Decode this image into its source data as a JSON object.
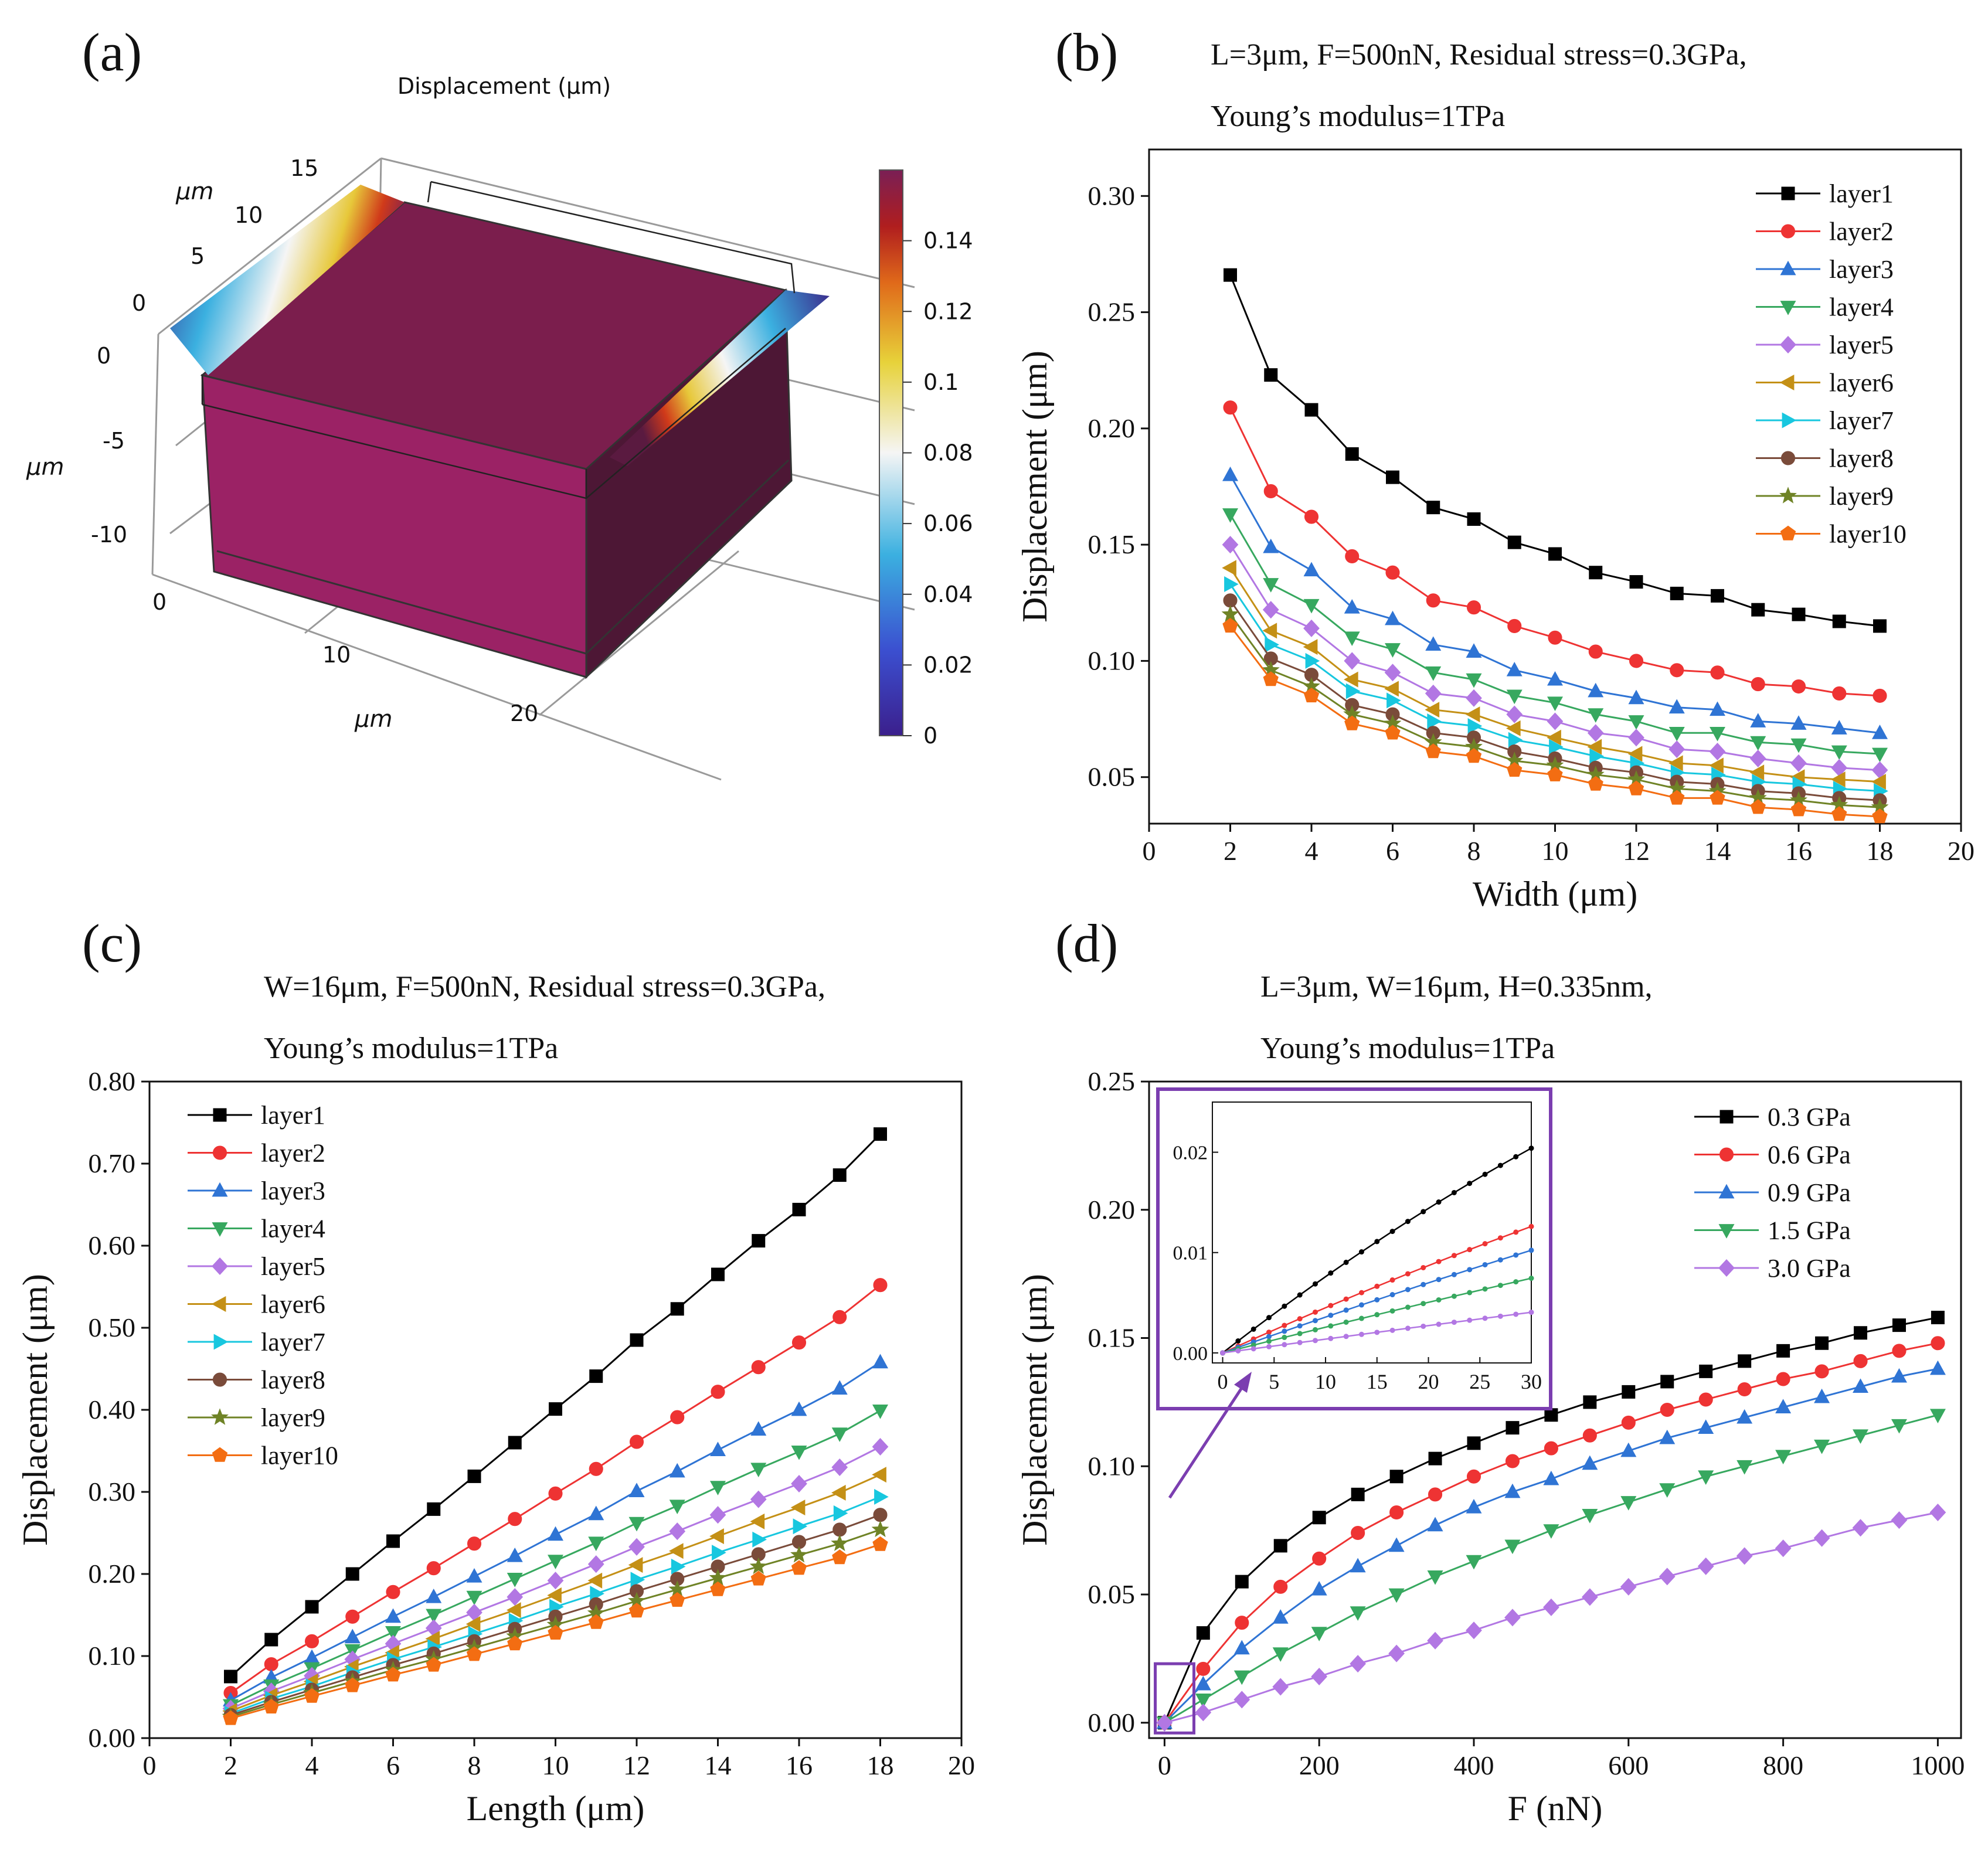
{
  "panels": {
    "a": {
      "label": "(a)"
    },
    "b": {
      "label": "(b)"
    },
    "c": {
      "label": "(c)"
    },
    "d": {
      "label": "(d)"
    }
  },
  "colors": {
    "layer1": "#000000",
    "layer2": "#ee3333",
    "layer3": "#2f74d4",
    "layer4": "#37a85f",
    "layer5": "#b277e3",
    "layer6": "#c49016",
    "layer7": "#18c7df",
    "layer8": "#7a4b3a",
    "layer9": "#6f8326",
    "layer10": "#f36d12",
    "membrane": "#8b1f58",
    "frame": "#777777",
    "inset_border": "#7b3eb0"
  },
  "markers": {
    "layer1": "square",
    "layer2": "circle",
    "layer3": "triangle-up",
    "layer4": "triangle-down",
    "layer5": "diamond",
    "layer6": "triangle-left",
    "layer7": "triangle-right",
    "layer8": "circle",
    "layer9": "star",
    "layer10": "pentagon"
  },
  "chart_data": [
    {
      "id": "a",
      "type": "heatmap",
      "title": "Displacement (µm)",
      "axis_unit": "µm",
      "x_ticks": [
        "0",
        "10",
        "20"
      ],
      "y_ticks": [
        "0",
        "5",
        "10",
        "15"
      ],
      "z_ticks": [
        "0",
        "-5",
        "-10"
      ],
      "colorbar": {
        "range": [
          0,
          0.16
        ],
        "ticks": [
          "0",
          "0.02",
          "0.04",
          "0.06",
          "0.08",
          "0.1",
          "0.12",
          "0.14"
        ]
      }
    },
    {
      "id": "b",
      "type": "line",
      "title_lines": [
        "L=3μm, F=500nN, Residual stress=0.3GPa,",
        "Young’s modulus=1TPa"
      ],
      "xlabel": "Width (μm)",
      "ylabel": "Displacement (μm)",
      "xlim": [
        0,
        20
      ],
      "ylim": [
        0.03,
        0.32
      ],
      "xticks": [
        0,
        2,
        4,
        6,
        8,
        10,
        12,
        14,
        16,
        18,
        20
      ],
      "yticks": [
        0.05,
        0.1,
        0.15,
        0.2,
        0.25,
        0.3
      ],
      "ytick_decimals": 2,
      "legend": "top-right",
      "x": [
        2,
        3,
        4,
        5,
        6,
        7,
        8,
        9,
        10,
        11,
        12,
        13,
        14,
        15,
        16,
        17,
        18
      ],
      "series": [
        {
          "name": "layer1",
          "values": [
            0.266,
            0.223,
            0.208,
            0.189,
            0.179,
            0.166,
            0.161,
            0.151,
            0.146,
            0.138,
            0.134,
            0.129,
            0.128,
            0.122,
            0.12,
            0.117,
            0.115
          ]
        },
        {
          "name": "layer2",
          "values": [
            0.209,
            0.173,
            0.162,
            0.145,
            0.138,
            0.126,
            0.123,
            0.115,
            0.11,
            0.104,
            0.1,
            0.096,
            0.095,
            0.09,
            0.089,
            0.086,
            0.085
          ]
        },
        {
          "name": "layer3",
          "values": [
            0.18,
            0.149,
            0.139,
            0.123,
            0.118,
            0.107,
            0.104,
            0.096,
            0.092,
            0.087,
            0.084,
            0.08,
            0.079,
            0.074,
            0.073,
            0.071,
            0.069
          ]
        },
        {
          "name": "layer4",
          "values": [
            0.163,
            0.133,
            0.124,
            0.11,
            0.105,
            0.095,
            0.092,
            0.085,
            0.082,
            0.077,
            0.074,
            0.069,
            0.069,
            0.065,
            0.064,
            0.061,
            0.06
          ]
        },
        {
          "name": "layer5",
          "values": [
            0.15,
            0.122,
            0.114,
            0.1,
            0.095,
            0.086,
            0.084,
            0.077,
            0.074,
            0.069,
            0.067,
            0.062,
            0.061,
            0.058,
            0.056,
            0.054,
            0.053
          ]
        },
        {
          "name": "layer6",
          "values": [
            0.14,
            0.113,
            0.106,
            0.092,
            0.088,
            0.079,
            0.077,
            0.071,
            0.067,
            0.063,
            0.06,
            0.056,
            0.055,
            0.052,
            0.05,
            0.049,
            0.048
          ]
        },
        {
          "name": "layer7",
          "values": [
            0.133,
            0.107,
            0.1,
            0.087,
            0.083,
            0.074,
            0.072,
            0.066,
            0.063,
            0.059,
            0.056,
            0.052,
            0.051,
            0.048,
            0.047,
            0.045,
            0.044
          ]
        },
        {
          "name": "layer8",
          "values": [
            0.126,
            0.101,
            0.094,
            0.081,
            0.077,
            0.069,
            0.067,
            0.061,
            0.058,
            0.054,
            0.052,
            0.048,
            0.047,
            0.044,
            0.043,
            0.041,
            0.04
          ]
        },
        {
          "name": "layer9",
          "values": [
            0.12,
            0.096,
            0.089,
            0.077,
            0.073,
            0.065,
            0.063,
            0.057,
            0.055,
            0.051,
            0.049,
            0.045,
            0.044,
            0.041,
            0.04,
            0.038,
            0.037
          ]
        },
        {
          "name": "layer10",
          "values": [
            0.115,
            0.092,
            0.085,
            0.073,
            0.069,
            0.061,
            0.059,
            0.053,
            0.051,
            0.047,
            0.045,
            0.041,
            0.041,
            0.037,
            0.036,
            0.034,
            0.033
          ]
        }
      ]
    },
    {
      "id": "c",
      "type": "line",
      "title_lines": [
        "W=16μm, F=500nN, Residual stress=0.3GPa,",
        "Young’s modulus=1TPa"
      ],
      "xlabel": "Length (μm)",
      "ylabel": "Displacement (μm)",
      "xlim": [
        0,
        20
      ],
      "ylim": [
        0,
        0.8
      ],
      "xticks": [
        0,
        2,
        4,
        6,
        8,
        10,
        12,
        14,
        16,
        18,
        20
      ],
      "yticks": [
        0.0,
        0.1,
        0.2,
        0.3,
        0.4,
        0.5,
        0.6,
        0.7,
        0.8
      ],
      "ytick_decimals": 2,
      "legend": "top-left",
      "x": [
        2,
        3,
        4,
        5,
        6,
        7,
        8,
        9,
        10,
        11,
        12,
        13,
        14,
        15,
        16,
        17,
        18
      ],
      "series": [
        {
          "name": "layer1",
          "values": [
            0.075,
            0.12,
            0.16,
            0.2,
            0.24,
            0.279,
            0.319,
            0.36,
            0.401,
            0.441,
            0.485,
            0.523,
            0.565,
            0.606,
            0.644,
            0.686,
            0.736
          ]
        },
        {
          "name": "layer2",
          "values": [
            0.055,
            0.09,
            0.118,
            0.148,
            0.178,
            0.207,
            0.237,
            0.267,
            0.298,
            0.328,
            0.361,
            0.391,
            0.422,
            0.452,
            0.482,
            0.513,
            0.552
          ]
        },
        {
          "name": "layer3",
          "values": [
            0.046,
            0.074,
            0.098,
            0.123,
            0.148,
            0.172,
            0.197,
            0.222,
            0.248,
            0.273,
            0.301,
            0.325,
            0.351,
            0.376,
            0.4,
            0.426,
            0.458
          ]
        },
        {
          "name": "layer4",
          "values": [
            0.04,
            0.064,
            0.085,
            0.107,
            0.129,
            0.15,
            0.172,
            0.194,
            0.216,
            0.238,
            0.262,
            0.283,
            0.306,
            0.328,
            0.349,
            0.371,
            0.399
          ]
        },
        {
          "name": "layer5",
          "values": [
            0.036,
            0.057,
            0.076,
            0.096,
            0.115,
            0.134,
            0.153,
            0.172,
            0.192,
            0.212,
            0.233,
            0.252,
            0.272,
            0.291,
            0.31,
            0.33,
            0.355
          ]
        },
        {
          "name": "layer6",
          "values": [
            0.033,
            0.052,
            0.069,
            0.087,
            0.104,
            0.121,
            0.139,
            0.156,
            0.174,
            0.192,
            0.211,
            0.228,
            0.246,
            0.264,
            0.281,
            0.299,
            0.321
          ]
        },
        {
          "name": "layer7",
          "values": [
            0.03,
            0.048,
            0.063,
            0.08,
            0.096,
            0.111,
            0.127,
            0.143,
            0.16,
            0.176,
            0.193,
            0.209,
            0.226,
            0.242,
            0.258,
            0.274,
            0.294
          ]
        },
        {
          "name": "layer8",
          "values": [
            0.028,
            0.044,
            0.059,
            0.074,
            0.089,
            0.103,
            0.118,
            0.133,
            0.148,
            0.163,
            0.179,
            0.194,
            0.209,
            0.224,
            0.239,
            0.254,
            0.272
          ]
        },
        {
          "name": "layer9",
          "values": [
            0.026,
            0.041,
            0.055,
            0.069,
            0.083,
            0.096,
            0.11,
            0.124,
            0.138,
            0.152,
            0.167,
            0.181,
            0.195,
            0.209,
            0.223,
            0.237,
            0.254
          ]
        },
        {
          "name": "layer10",
          "values": [
            0.024,
            0.038,
            0.051,
            0.064,
            0.077,
            0.089,
            0.102,
            0.115,
            0.128,
            0.141,
            0.155,
            0.168,
            0.181,
            0.194,
            0.207,
            0.22,
            0.236
          ]
        }
      ]
    },
    {
      "id": "d",
      "type": "line",
      "title_lines": [
        "L=3μm, W=16μm, H=0.335nm,",
        "Young’s modulus=1TPa"
      ],
      "xlabel": "F (nN)",
      "ylabel": "Displacement (μm)",
      "xlim": [
        -20,
        1030
      ],
      "ylim": [
        -0.006,
        0.25
      ],
      "xticks": [
        0,
        200,
        400,
        600,
        800,
        1000
      ],
      "yticks": [
        0.0,
        0.05,
        0.1,
        0.15,
        0.2,
        0.25
      ],
      "ytick_decimals": 2,
      "legend": "top-right",
      "x": [
        0,
        50,
        100,
        150,
        200,
        250,
        300,
        350,
        400,
        450,
        500,
        550,
        600,
        650,
        700,
        750,
        800,
        850,
        900,
        950,
        1000
      ],
      "series": [
        {
          "name": "0.3 GPa",
          "values": [
            0.0,
            0.035,
            0.055,
            0.069,
            0.08,
            0.089,
            0.096,
            0.103,
            0.109,
            0.115,
            0.12,
            0.125,
            0.129,
            0.133,
            0.137,
            0.141,
            0.145,
            0.148,
            0.152,
            0.155,
            0.158
          ]
        },
        {
          "name": "0.6 GPa",
          "values": [
            0.0,
            0.021,
            0.039,
            0.053,
            0.064,
            0.074,
            0.082,
            0.089,
            0.096,
            0.102,
            0.107,
            0.112,
            0.117,
            0.122,
            0.126,
            0.13,
            0.134,
            0.137,
            0.141,
            0.145,
            0.148
          ]
        },
        {
          "name": "0.9 GPa",
          "values": [
            0.0,
            0.015,
            0.029,
            0.041,
            0.052,
            0.061,
            0.069,
            0.077,
            0.084,
            0.09,
            0.095,
            0.101,
            0.106,
            0.111,
            0.115,
            0.119,
            0.123,
            0.127,
            0.131,
            0.135,
            0.138
          ]
        },
        {
          "name": "1.5 GPa",
          "values": [
            0.0,
            0.009,
            0.018,
            0.027,
            0.035,
            0.043,
            0.05,
            0.057,
            0.063,
            0.069,
            0.075,
            0.081,
            0.086,
            0.091,
            0.096,
            0.1,
            0.104,
            0.108,
            0.112,
            0.116,
            0.12
          ]
        },
        {
          "name": "3.0 GPa",
          "values": [
            0.0,
            0.004,
            0.009,
            0.014,
            0.018,
            0.023,
            0.027,
            0.032,
            0.036,
            0.041,
            0.045,
            0.049,
            0.053,
            0.057,
            0.061,
            0.065,
            0.068,
            0.072,
            0.076,
            0.079,
            0.082
          ]
        }
      ],
      "inset": {
        "xlim": [
          -1,
          30
        ],
        "ylim": [
          -0.001,
          0.025
        ],
        "xticks": [
          0,
          5,
          10,
          15,
          20,
          25,
          30
        ],
        "yticks": [
          0.0,
          0.01,
          0.02
        ],
        "ytick_decimals": 2,
        "x": [
          0,
          1.5,
          3,
          4.5,
          6,
          7.5,
          9,
          10.5,
          12,
          13.5,
          15,
          16.5,
          18,
          19.5,
          21,
          22.5,
          24,
          25.5,
          27,
          28.5,
          30
        ],
        "slopes": [
          0.0008,
          0.000465,
          0.000365,
          0.00026,
          0.000138
        ],
        "curvature": [
          4e-06,
          1.5e-06,
          8e-07,
          4e-07,
          1e-07
        ]
      }
    }
  ]
}
